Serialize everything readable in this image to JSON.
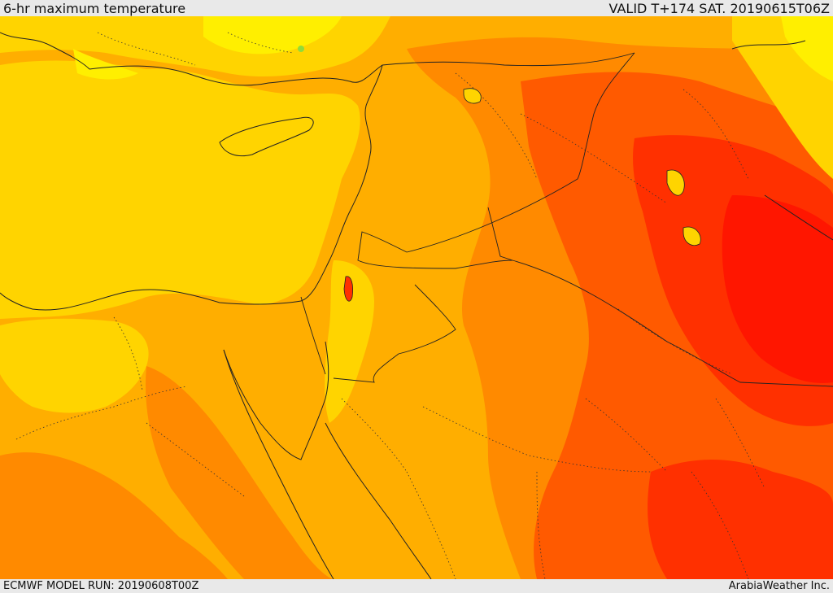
{
  "header": {
    "title": "6-hr maximum temperature",
    "valid": "VALID T+174 SAT. 20190615T06Z"
  },
  "footer": {
    "model_run": "ECMWF MODEL RUN: 20190608T00Z",
    "credit": "ArabiaWeather Inc."
  },
  "map": {
    "field": "6-hr maximum temperature",
    "colors": {
      "lightest": "#ffef00",
      "light": "#ffd400",
      "mid": "#ffae00",
      "warm": "#ff8a00",
      "hot": "#ff5a00",
      "hotter": "#ff3000",
      "hottest": "#ff1600",
      "sea_green": "#8fdc3a"
    }
  }
}
